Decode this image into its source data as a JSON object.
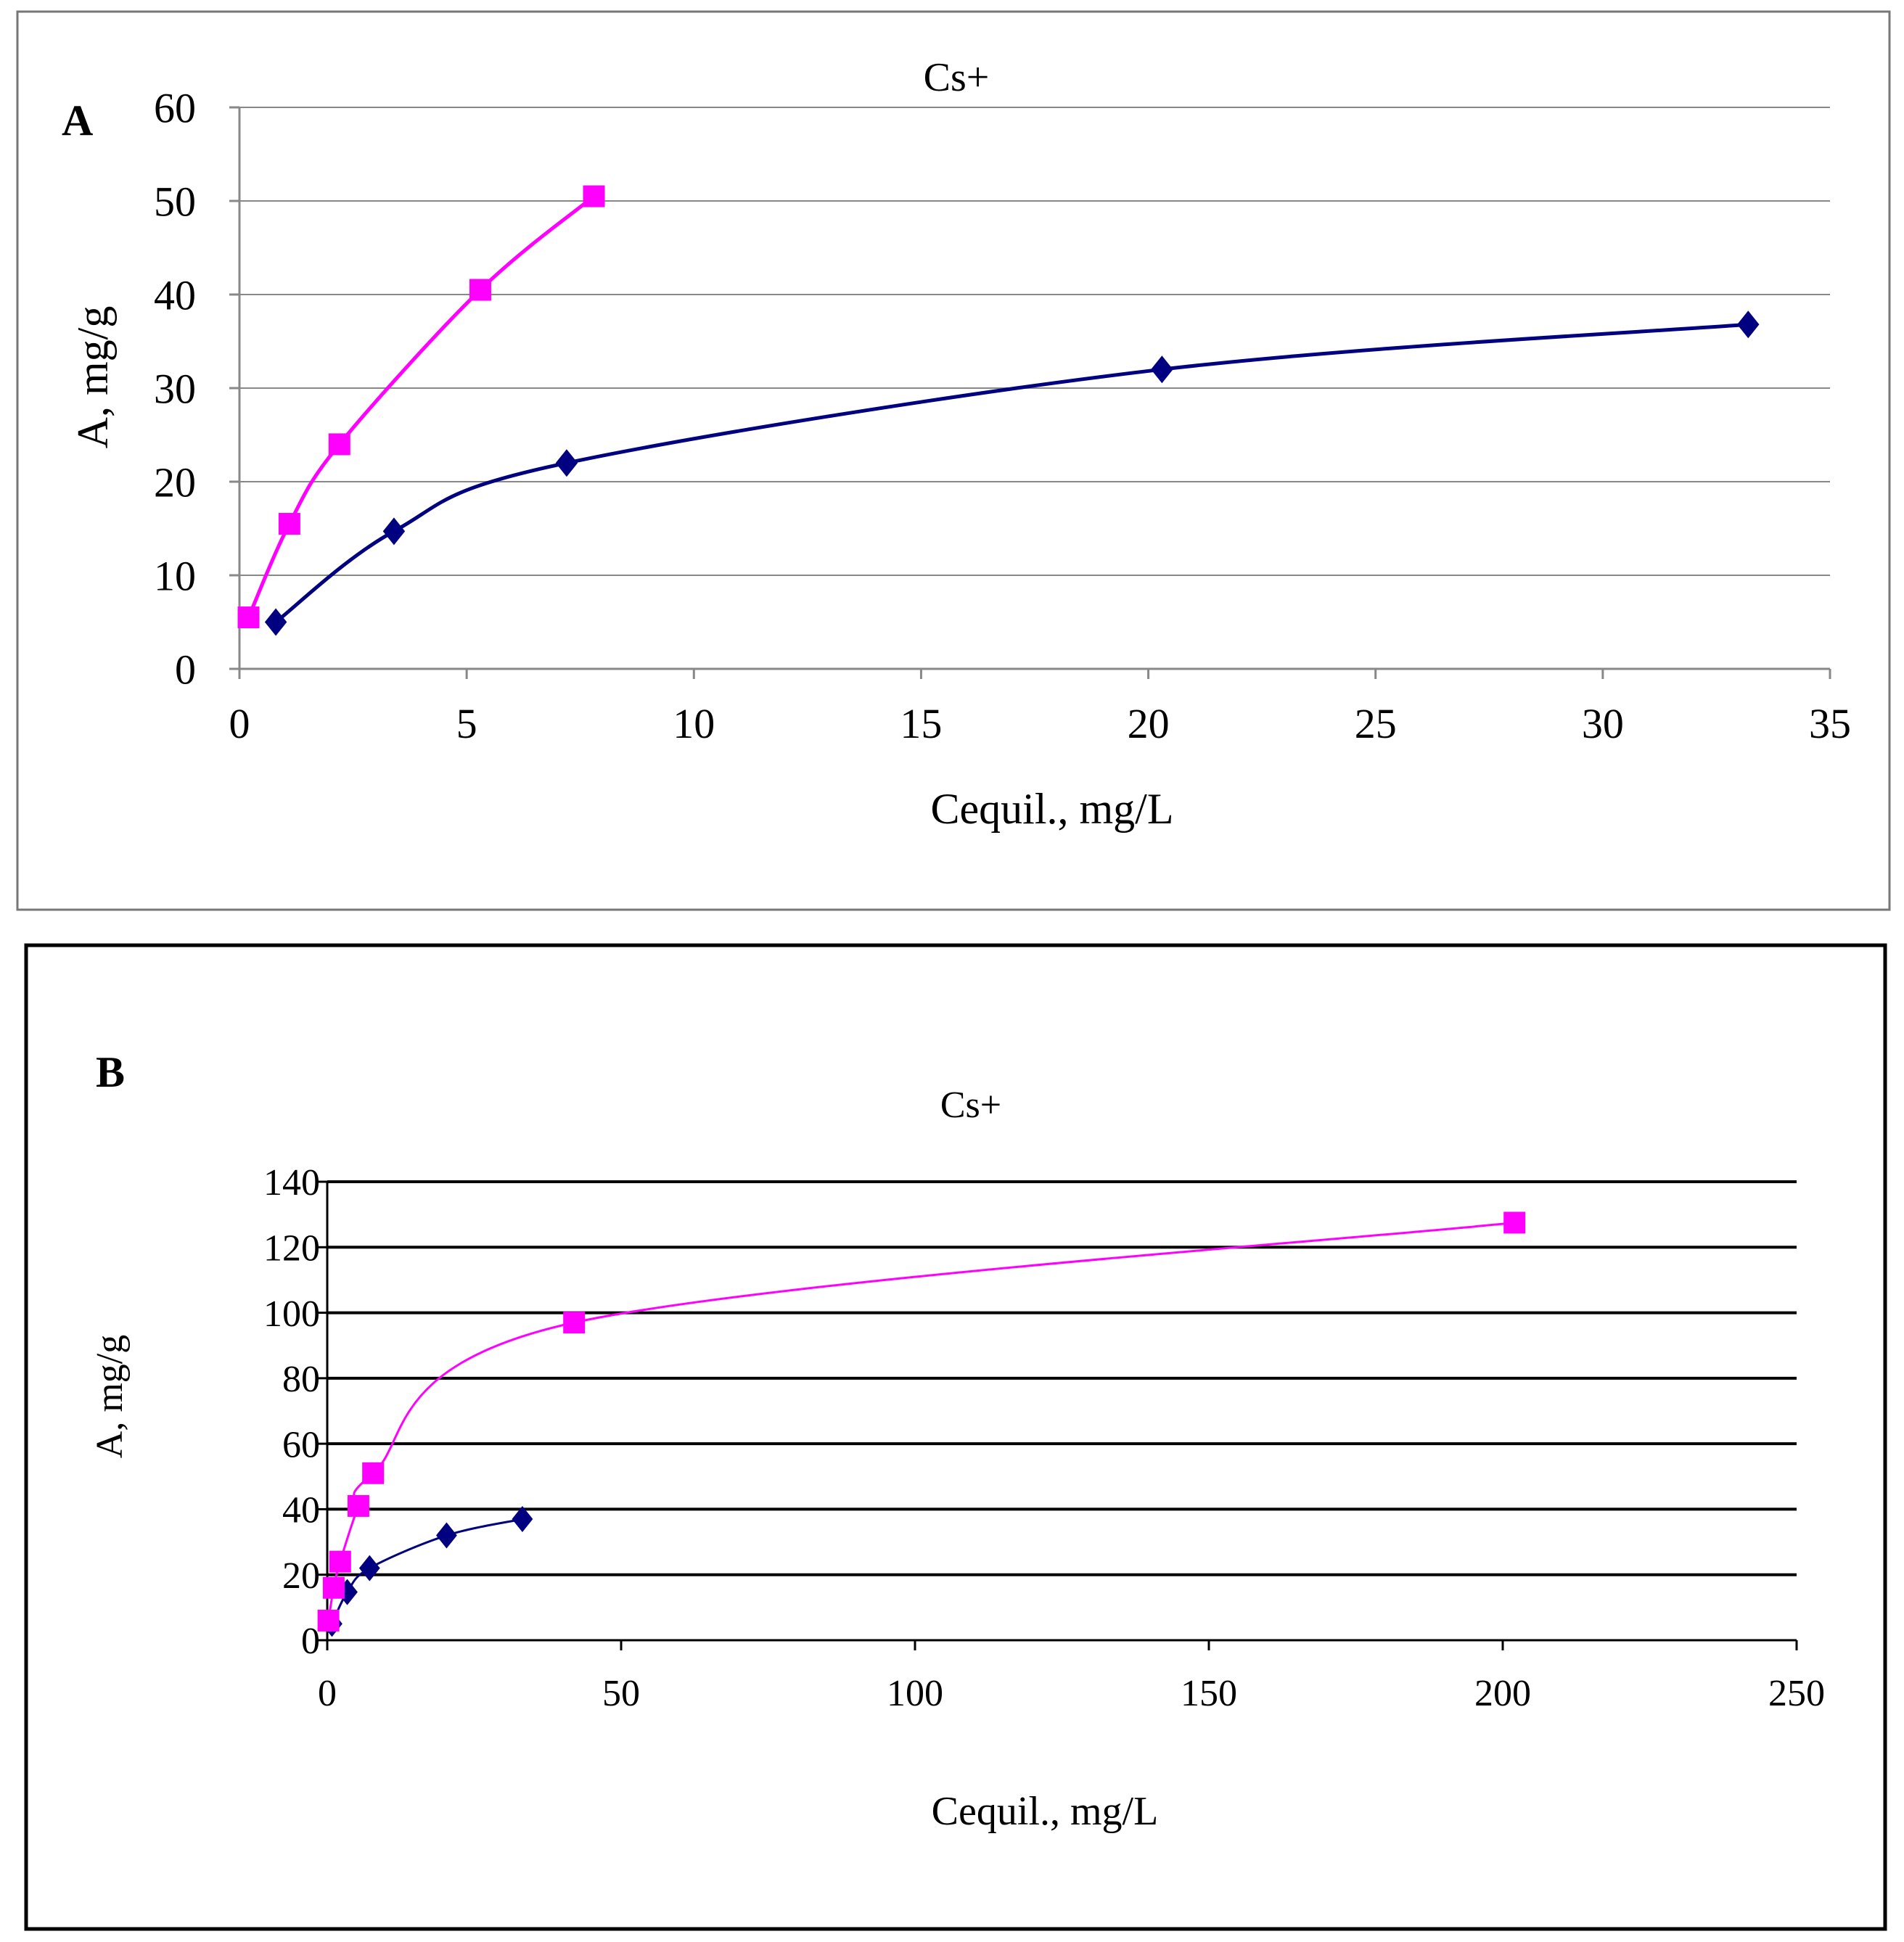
{
  "chart_data": [
    {
      "type": "line",
      "panel_label": "A",
      "title": "Cs+",
      "xlabel": "Cequil., mg/L",
      "ylabel": "A, mg/g",
      "xlim": [
        0,
        35
      ],
      "ylim": [
        0,
        60
      ],
      "xticks": [
        "0",
        "5",
        "10",
        "15",
        "20",
        "25",
        "30",
        "35"
      ],
      "yticks": [
        "0",
        "10",
        "20",
        "30",
        "40",
        "50",
        "60"
      ],
      "grid": true,
      "series": [
        {
          "name": "series-magenta",
          "color": "#ff00ff",
          "marker": "square",
          "points": [
            [
              0.2,
              5.5
            ],
            [
              1.1,
              15.5
            ],
            [
              2.2,
              24.0
            ],
            [
              5.3,
              40.5
            ],
            [
              7.8,
              50.5
            ]
          ]
        },
        {
          "name": "series-navy",
          "color": "#000080",
          "marker": "diamond",
          "points": [
            [
              0.8,
              5.0
            ],
            [
              3.4,
              14.7
            ],
            [
              7.2,
              22.0
            ],
            [
              20.3,
              32.0
            ],
            [
              33.2,
              36.8
            ]
          ]
        }
      ]
    },
    {
      "type": "line",
      "panel_label": "B",
      "title": "Cs+",
      "xlabel": "Cequil.,  mg/L",
      "ylabel": "A,  mg/g",
      "xlim": [
        0,
        250
      ],
      "ylim": [
        0,
        140
      ],
      "xticks": [
        "0",
        "50",
        "100",
        "150",
        "200",
        "250"
      ],
      "yticks": [
        "0",
        "20",
        "40",
        "60",
        "80",
        "100",
        "120",
        "140"
      ],
      "grid": true,
      "series": [
        {
          "name": "series-magenta",
          "color": "#ff00ff",
          "marker": "square",
          "points": [
            [
              0.2,
              6.0
            ],
            [
              1.1,
              16.0
            ],
            [
              2.2,
              24.0
            ],
            [
              5.3,
              41.0
            ],
            [
              7.8,
              51.0
            ],
            [
              42.0,
              97.0
            ],
            [
              202.0,
              127.5
            ]
          ]
        },
        {
          "name": "series-navy",
          "color": "#000080",
          "marker": "diamond",
          "points": [
            [
              0.8,
              5.0
            ],
            [
              3.4,
              14.7
            ],
            [
              7.2,
              22.0
            ],
            [
              20.3,
              32.0
            ],
            [
              33.2,
              37.0
            ]
          ]
        }
      ]
    }
  ]
}
